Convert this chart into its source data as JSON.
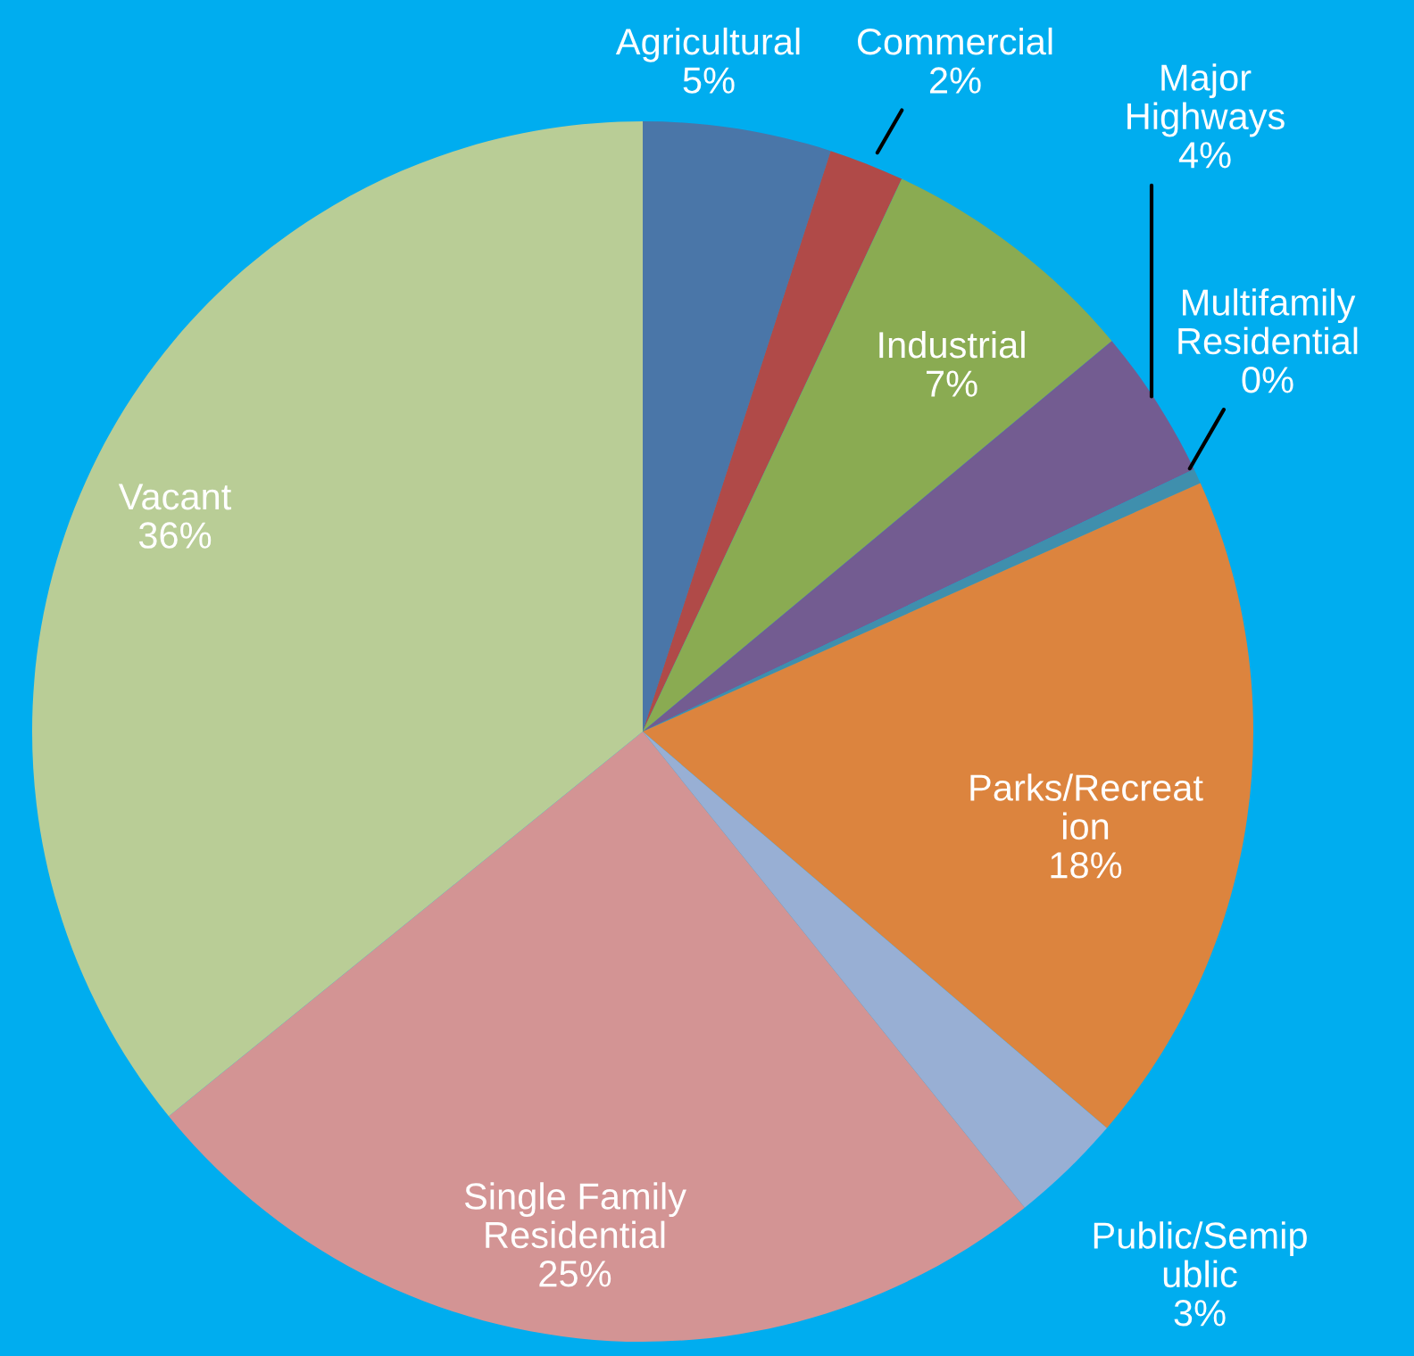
{
  "chart_data": {
    "type": "pie",
    "categories": [
      "Agricultural",
      "Commercial",
      "Industrial",
      "Major Highways",
      "Multifamily Residential",
      "Parks/Recreation",
      "Public/Semipublic",
      "Single Family Residential",
      "Vacant"
    ],
    "values": [
      5,
      2,
      7,
      4,
      0.4,
      18,
      3,
      25,
      36
    ],
    "value_labels": [
      "5%",
      "2%",
      "7%",
      "4%",
      "0%",
      "18%",
      "3%",
      "25%",
      "36%"
    ],
    "colors": [
      "#4a76a8",
      "#b04a48",
      "#8aab52",
      "#735c91",
      "#3f8fad",
      "#dc843e",
      "#98afd4",
      "#d39494",
      "#b9cd96"
    ],
    "legend": false
  }
}
